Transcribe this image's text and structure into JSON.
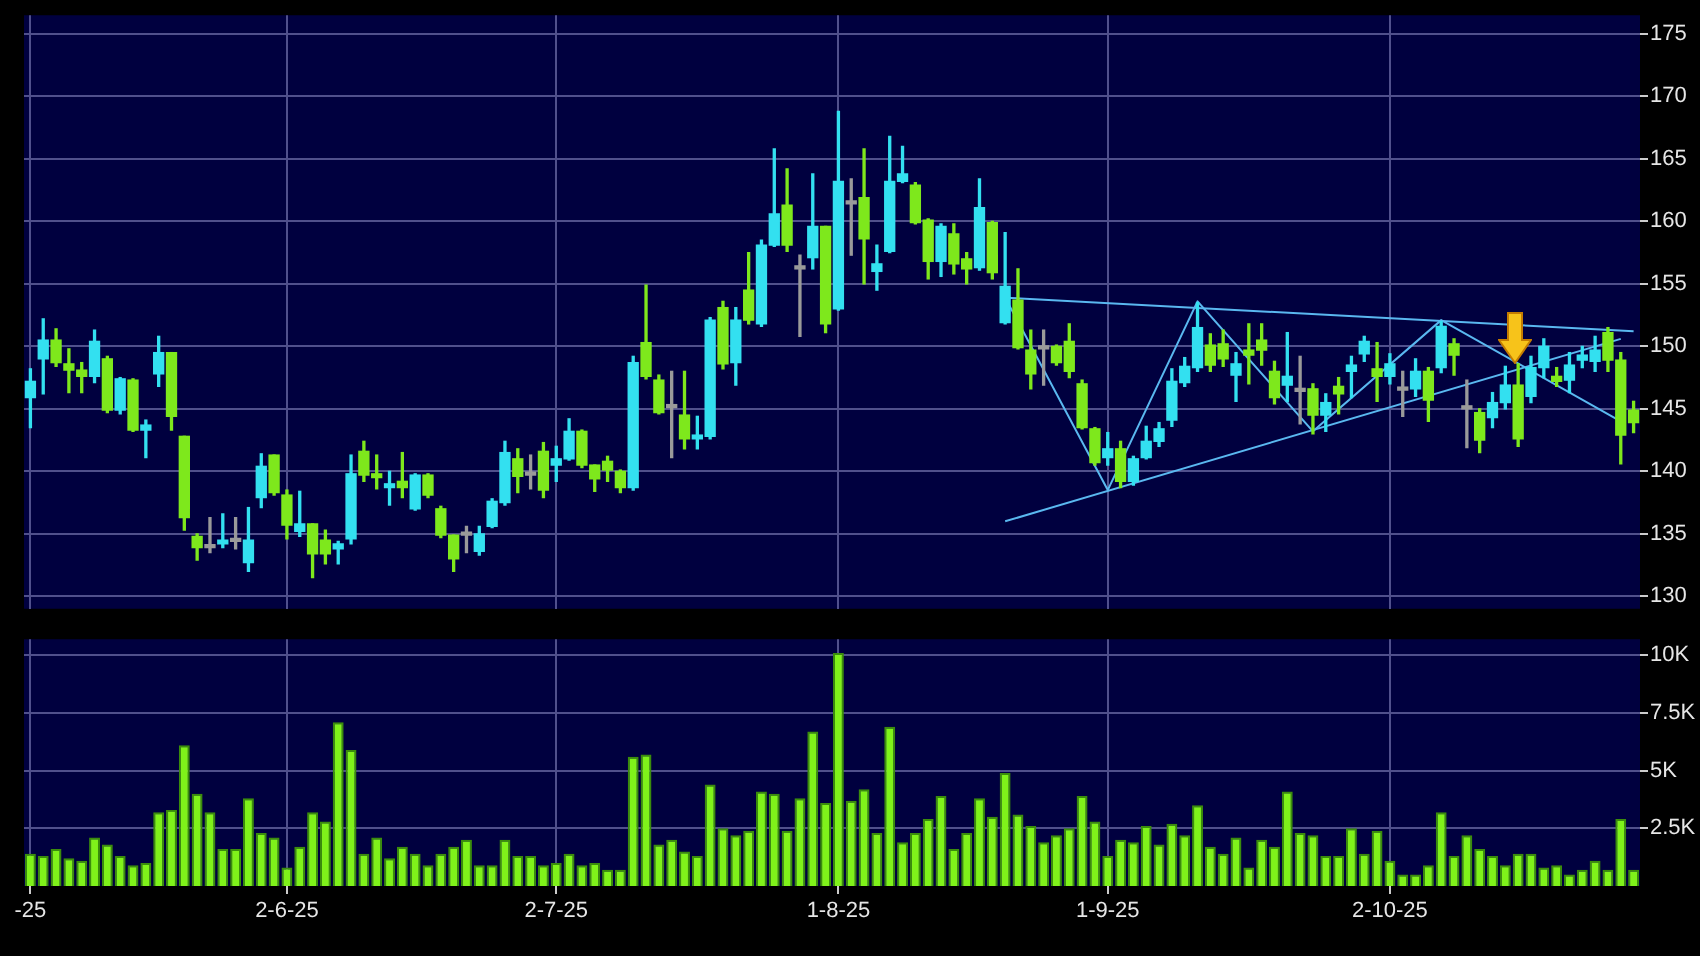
{
  "chart_data": [
    {
      "type": "candlestick",
      "tick_labels": "y",
      "grid": true,
      "legend": false,
      "categories": [
        null,
        null,
        null,
        null,
        null,
        null,
        null,
        null,
        null,
        null,
        null,
        null,
        null,
        null,
        null,
        null,
        null,
        null,
        null,
        null,
        null,
        null,
        null,
        null,
        null,
        null,
        null,
        null,
        null,
        null,
        null,
        null,
        null,
        null,
        null,
        null,
        null,
        null,
        null,
        null,
        null,
        null,
        null,
        null,
        null,
        null,
        null,
        null,
        null,
        null,
        null,
        null,
        null,
        null,
        null,
        null,
        null,
        null,
        null,
        null,
        null,
        null,
        null,
        null,
        null,
        null,
        null,
        null,
        null,
        null,
        null,
        null,
        null,
        null,
        null,
        null,
        null,
        null,
        null,
        null,
        null,
        null,
        null,
        null,
        null,
        null,
        null,
        null,
        null,
        null,
        null,
        null,
        null,
        null,
        null,
        null,
        null,
        null,
        null,
        null,
        null,
        null,
        null,
        null,
        null,
        null,
        null,
        null,
        null,
        null,
        null,
        null,
        null,
        null,
        null,
        null,
        null,
        null,
        null,
        null,
        null,
        null,
        null,
        null,
        null,
        null
      ],
      "ohlc": [
        [
          145.9,
          148.2,
          143.5,
          147.2
        ],
        [
          149.0,
          152.2,
          146.2,
          150.5
        ],
        [
          150.5,
          151.4,
          148.4,
          148.7
        ],
        [
          148.6,
          149.8,
          146.3,
          148.1
        ],
        [
          148.1,
          148.7,
          146.3,
          147.6
        ],
        [
          147.6,
          151.3,
          147.1,
          150.4
        ],
        [
          149.0,
          149.2,
          144.7,
          144.9
        ],
        [
          144.9,
          147.5,
          144.6,
          147.4
        ],
        [
          147.3,
          147.4,
          143.2,
          143.3
        ],
        [
          143.3,
          144.1,
          141.1,
          143.7
        ],
        [
          147.8,
          150.8,
          146.8,
          149.5
        ],
        [
          149.5,
          149.5,
          143.3,
          144.4
        ],
        [
          142.8,
          142.8,
          135.3,
          136.3
        ],
        [
          134.8,
          135.0,
          132.9,
          133.9
        ],
        [
          134.1,
          136.3,
          133.5,
          133.9
        ],
        [
          134.2,
          136.6,
          133.9,
          134.5
        ],
        [
          134.5,
          136.3,
          133.8,
          134.4
        ],
        [
          132.7,
          137.1,
          132.0,
          134.5
        ],
        [
          137.9,
          141.4,
          137.1,
          140.4
        ],
        [
          141.3,
          141.3,
          138.1,
          138.3
        ],
        [
          138.1,
          138.5,
          134.6,
          135.7
        ],
        [
          135.2,
          138.4,
          134.8,
          135.8
        ],
        [
          135.8,
          135.8,
          131.5,
          133.4
        ],
        [
          134.5,
          135.3,
          132.6,
          133.4
        ],
        [
          133.8,
          134.4,
          132.6,
          134.2
        ],
        [
          134.6,
          141.3,
          134.2,
          139.8
        ],
        [
          141.6,
          142.4,
          139.2,
          139.7
        ],
        [
          139.8,
          141.3,
          138.6,
          139.5
        ],
        [
          138.7,
          140.0,
          137.3,
          139.0
        ],
        [
          139.2,
          141.5,
          137.9,
          138.7
        ],
        [
          137.0,
          139.8,
          136.9,
          139.7
        ],
        [
          139.7,
          139.8,
          137.9,
          138.1
        ],
        [
          137.0,
          137.2,
          134.7,
          134.9
        ],
        [
          134.9,
          134.9,
          132.0,
          133.0
        ],
        [
          134.9,
          135.6,
          133.5,
          135.0
        ],
        [
          133.6,
          135.6,
          133.3,
          135.0
        ],
        [
          135.6,
          137.8,
          135.5,
          137.6
        ],
        [
          137.5,
          142.4,
          137.3,
          141.5
        ],
        [
          141.0,
          141.8,
          138.3,
          139.6
        ],
        [
          139.7,
          141.3,
          138.6,
          139.8
        ],
        [
          141.6,
          142.3,
          137.9,
          138.5
        ],
        [
          140.5,
          142.0,
          139.2,
          141.0
        ],
        [
          141.0,
          144.2,
          140.9,
          143.2
        ],
        [
          143.2,
          143.3,
          140.3,
          140.5
        ],
        [
          140.5,
          140.5,
          138.4,
          139.4
        ],
        [
          140.8,
          141.2,
          139.2,
          140.1
        ],
        [
          140.0,
          140.1,
          138.3,
          138.7
        ],
        [
          138.7,
          149.2,
          138.5,
          148.7
        ],
        [
          150.3,
          154.9,
          147.4,
          147.6
        ],
        [
          147.3,
          147.7,
          144.6,
          144.7
        ],
        [
          145.1,
          148.0,
          141.1,
          145.2
        ],
        [
          144.5,
          148.0,
          141.8,
          142.6
        ],
        [
          142.6,
          144.4,
          141.8,
          142.9
        ],
        [
          142.8,
          152.3,
          142.6,
          152.1
        ],
        [
          153.1,
          153.6,
          148.2,
          148.6
        ],
        [
          148.7,
          153.1,
          146.9,
          152.1
        ],
        [
          154.5,
          157.5,
          151.8,
          152.1
        ],
        [
          151.8,
          158.5,
          151.6,
          158.1
        ],
        [
          158.1,
          165.8,
          158.0,
          160.6
        ],
        [
          161.3,
          164.2,
          157.6,
          158.1
        ],
        [
          156.2,
          157.3,
          150.8,
          156.3
        ],
        [
          157.1,
          163.8,
          156.2,
          159.6
        ],
        [
          159.6,
          159.6,
          151.1,
          151.8
        ],
        [
          153.0,
          168.8,
          152.9,
          163.2
        ],
        [
          161.4,
          163.4,
          157.3,
          161.5
        ],
        [
          161.9,
          165.8,
          155.0,
          158.6
        ],
        [
          156.0,
          158.1,
          154.5,
          156.6
        ],
        [
          157.6,
          166.8,
          157.5,
          163.2
        ],
        [
          163.2,
          166.0,
          163.1,
          163.8
        ],
        [
          162.9,
          163.1,
          159.8,
          159.9
        ],
        [
          160.1,
          160.2,
          155.4,
          156.8
        ],
        [
          156.8,
          159.8,
          155.6,
          159.6
        ],
        [
          159.0,
          159.8,
          155.8,
          156.6
        ],
        [
          157.0,
          157.5,
          155.0,
          156.2
        ],
        [
          156.3,
          163.4,
          156.1,
          161.1
        ],
        [
          159.9,
          160.0,
          155.4,
          155.9
        ],
        [
          151.9,
          159.1,
          151.8,
          154.8
        ],
        [
          153.7,
          156.2,
          149.8,
          149.9
        ],
        [
          149.7,
          151.3,
          146.6,
          147.8
        ],
        [
          149.9,
          151.3,
          146.9,
          149.8
        ],
        [
          150.0,
          150.1,
          148.5,
          148.7
        ],
        [
          150.4,
          151.8,
          147.5,
          148.0
        ],
        [
          147.0,
          147.3,
          143.4,
          143.5
        ],
        [
          143.4,
          143.5,
          140.5,
          140.7
        ],
        [
          141.1,
          143.1,
          140.5,
          141.8
        ],
        [
          141.8,
          142.4,
          138.7,
          139.2
        ],
        [
          139.2,
          141.2,
          138.9,
          141.0
        ],
        [
          141.1,
          143.6,
          141.0,
          142.4
        ],
        [
          142.4,
          143.9,
          142.0,
          143.4
        ],
        [
          144.1,
          148.2,
          143.6,
          147.2
        ],
        [
          147.1,
          149.1,
          146.8,
          148.4
        ],
        [
          148.3,
          153.5,
          148.0,
          151.5
        ],
        [
          150.1,
          151.0,
          148.0,
          148.5
        ],
        [
          150.2,
          151.3,
          148.4,
          149.0
        ],
        [
          147.7,
          149.5,
          145.6,
          148.6
        ],
        [
          149.7,
          151.8,
          147.0,
          149.3
        ],
        [
          150.5,
          151.8,
          148.5,
          149.7
        ],
        [
          148.0,
          148.8,
          145.4,
          145.9
        ],
        [
          146.9,
          151.1,
          145.6,
          147.6
        ],
        [
          146.5,
          149.2,
          143.8,
          146.4
        ],
        [
          146.6,
          147.0,
          143.0,
          144.5
        ],
        [
          144.5,
          146.2,
          143.2,
          145.5
        ],
        [
          146.8,
          147.5,
          144.6,
          146.2
        ],
        [
          148.0,
          149.2,
          145.9,
          148.5
        ],
        [
          149.4,
          150.8,
          148.8,
          150.4
        ],
        [
          148.2,
          150.3,
          145.6,
          147.6
        ],
        [
          147.6,
          149.4,
          147.0,
          148.6
        ],
        [
          146.7,
          148.0,
          144.4,
          146.5
        ],
        [
          146.6,
          149.0,
          146.0,
          148.0
        ],
        [
          148.0,
          148.3,
          144.0,
          145.7
        ],
        [
          148.3,
          152.0,
          147.9,
          151.6
        ],
        [
          150.2,
          150.6,
          147.7,
          149.3
        ],
        [
          145.1,
          147.3,
          141.9,
          145.0
        ],
        [
          144.7,
          145.0,
          141.5,
          142.5
        ],
        [
          144.3,
          146.3,
          143.5,
          145.5
        ],
        [
          145.5,
          148.4,
          145.0,
          146.9
        ],
        [
          146.9,
          148.6,
          142.0,
          142.6
        ],
        [
          146.0,
          149.2,
          145.5,
          148.3
        ],
        [
          148.3,
          150.6,
          147.5,
          150.0
        ],
        [
          147.6,
          148.3,
          146.8,
          147.2
        ],
        [
          147.3,
          149.5,
          146.3,
          148.5
        ],
        [
          148.9,
          150.0,
          148.3,
          149.3
        ],
        [
          148.8,
          150.8,
          148.0,
          149.7
        ],
        [
          151.1,
          151.5,
          148.0,
          148.9
        ],
        [
          148.9,
          149.5,
          140.6,
          142.9
        ],
        [
          144.9,
          145.6,
          143.1,
          143.9
        ]
      ],
      "colors": [
        "#33e0f0",
        "#33e0f0",
        "#7ee81c",
        "#7ee81c",
        "#7ee81c",
        "#33e0f0",
        "#7ee81c",
        "#33e0f0",
        "#7ee81c",
        "#33e0f0",
        "#33e0f0",
        "#7ee81c",
        "#7ee81c",
        "#7ee81c",
        "#9a9a9a",
        "#33e0f0",
        "#9a9a9a",
        "#33e0f0",
        "#33e0f0",
        "#7ee81c",
        "#7ee81c",
        "#33e0f0",
        "#7ee81c",
        "#7ee81c",
        "#33e0f0",
        "#33e0f0",
        "#7ee81c",
        "#7ee81c",
        "#33e0f0",
        "#7ee81c",
        "#33e0f0",
        "#7ee81c",
        "#7ee81c",
        "#7ee81c",
        "#9a9a9a",
        "#33e0f0",
        "#33e0f0",
        "#33e0f0",
        "#7ee81c",
        "#9a9a9a",
        "#7ee81c",
        "#33e0f0",
        "#33e0f0",
        "#7ee81c",
        "#7ee81c",
        "#7ee81c",
        "#7ee81c",
        "#33e0f0",
        "#7ee81c",
        "#7ee81c",
        "#9a9a9a",
        "#7ee81c",
        "#33e0f0",
        "#33e0f0",
        "#7ee81c",
        "#33e0f0",
        "#7ee81c",
        "#33e0f0",
        "#33e0f0",
        "#7ee81c",
        "#9a9a9a",
        "#33e0f0",
        "#7ee81c",
        "#33e0f0",
        "#9a9a9a",
        "#7ee81c",
        "#33e0f0",
        "#33e0f0",
        "#33e0f0",
        "#7ee81c",
        "#7ee81c",
        "#33e0f0",
        "#7ee81c",
        "#7ee81c",
        "#33e0f0",
        "#7ee81c",
        "#33e0f0",
        "#7ee81c",
        "#7ee81c",
        "#9a9a9a",
        "#7ee81c",
        "#7ee81c",
        "#7ee81c",
        "#7ee81c",
        "#33e0f0",
        "#7ee81c",
        "#33e0f0",
        "#33e0f0",
        "#33e0f0",
        "#33e0f0",
        "#33e0f0",
        "#33e0f0",
        "#7ee81c",
        "#7ee81c",
        "#33e0f0",
        "#7ee81c",
        "#7ee81c",
        "#7ee81c",
        "#33e0f0",
        "#9a9a9a",
        "#7ee81c",
        "#33e0f0",
        "#7ee81c",
        "#33e0f0",
        "#33e0f0",
        "#7ee81c",
        "#33e0f0",
        "#9a9a9a",
        "#33e0f0",
        "#7ee81c",
        "#33e0f0",
        "#7ee81c",
        "#9a9a9a",
        "#7ee81c",
        "#33e0f0",
        "#33e0f0",
        "#7ee81c",
        "#33e0f0",
        "#33e0f0",
        "#7ee81c",
        "#33e0f0",
        "#33e0f0",
        "#33e0f0",
        "#7ee81c",
        "#7ee81c",
        "#7ee81c"
      ],
      "series": [
        {
          "type": "line",
          "color": "#5ab8f0",
          "values": [
            null,
            null,
            null,
            null,
            null,
            null,
            null,
            null,
            null,
            null,
            null,
            null,
            null,
            null,
            null,
            null,
            null,
            null,
            null,
            null,
            null,
            null,
            null,
            null,
            null,
            null,
            null,
            null,
            null,
            null,
            null,
            null,
            null,
            null,
            null,
            null,
            null,
            null,
            null,
            null,
            null,
            null,
            null,
            null,
            null,
            null,
            null,
            null,
            null,
            null,
            null,
            null,
            null,
            null,
            null,
            null,
            null,
            null,
            null,
            null,
            null,
            null,
            null,
            null,
            null,
            null,
            null,
            null,
            null,
            null,
            null,
            null,
            null,
            null,
            null,
            null,
            153.9,
            null,
            null,
            null,
            null,
            null,
            null,
            null,
            null,
            null,
            null,
            null,
            null,
            null,
            null,
            null,
            null,
            null,
            null,
            null,
            null,
            null,
            null,
            null,
            null,
            null,
            null,
            null,
            null,
            null,
            null,
            null,
            null,
            null,
            null,
            null,
            null,
            null,
            null,
            null,
            null,
            null,
            null,
            null,
            null,
            null,
            null,
            null,
            null,
            151.2
          ]
        },
        {
          "type": "line",
          "color": "#5ab8f0",
          "values": [
            null,
            null,
            null,
            null,
            null,
            null,
            null,
            null,
            null,
            null,
            null,
            null,
            null,
            null,
            null,
            null,
            null,
            null,
            null,
            null,
            null,
            null,
            null,
            null,
            null,
            null,
            null,
            null,
            null,
            null,
            null,
            null,
            null,
            null,
            null,
            null,
            null,
            null,
            null,
            null,
            null,
            null,
            null,
            null,
            null,
            null,
            null,
            null,
            null,
            null,
            null,
            null,
            null,
            null,
            null,
            null,
            null,
            null,
            null,
            null,
            null,
            null,
            null,
            null,
            null,
            null,
            null,
            null,
            null,
            null,
            null,
            null,
            null,
            null,
            null,
            null,
            136.0,
            null,
            null,
            null,
            null,
            null,
            null,
            null,
            null,
            null,
            null,
            null,
            null,
            null,
            null,
            null,
            null,
            null,
            null,
            null,
            null,
            null,
            null,
            null,
            null,
            null,
            null,
            null,
            null,
            null,
            null,
            null,
            null,
            null,
            null,
            null,
            null,
            null,
            null,
            null,
            null,
            null,
            null,
            null,
            null,
            null,
            null,
            null,
            150.6,
            null
          ]
        },
        {
          "type": "line",
          "color": "#5ab8f0",
          "values": [
            null,
            null,
            null,
            null,
            null,
            null,
            null,
            null,
            null,
            null,
            null,
            null,
            null,
            null,
            null,
            null,
            null,
            null,
            null,
            null,
            null,
            null,
            null,
            null,
            null,
            null,
            null,
            null,
            null,
            null,
            null,
            null,
            null,
            null,
            null,
            null,
            null,
            null,
            null,
            null,
            null,
            null,
            null,
            null,
            null,
            null,
            null,
            null,
            null,
            null,
            null,
            null,
            null,
            null,
            null,
            null,
            null,
            null,
            null,
            null,
            null,
            null,
            null,
            null,
            null,
            null,
            null,
            null,
            null,
            null,
            null,
            null,
            null,
            null,
            null,
            null,
            153.9,
            null,
            null,
            null,
            null,
            null,
            null,
            null,
            138.5,
            null,
            null,
            null,
            null,
            null,
            null,
            153.6,
            null,
            null,
            null,
            null,
            null,
            null,
            null,
            null,
            143.2,
            null,
            null,
            null,
            null,
            null,
            null,
            null,
            null,
            null,
            152.1,
            null,
            null,
            null,
            null,
            null,
            null,
            null,
            null,
            null,
            null,
            null,
            null,
            null,
            144.0,
            null
          ]
        }
      ],
      "ylim": [
        129,
        176.5
      ],
      "yticks": [
        130,
        135,
        140,
        145,
        150,
        155,
        160,
        165,
        170,
        175
      ]
    },
    {
      "type": "bar",
      "grid": true,
      "legend": false,
      "color": "#7ff21a",
      "categories": [
        "-25",
        null,
        null,
        null,
        null,
        null,
        null,
        null,
        null,
        null,
        null,
        null,
        null,
        null,
        null,
        null,
        null,
        null,
        null,
        null,
        "2-6-25",
        null,
        null,
        null,
        null,
        null,
        null,
        null,
        null,
        null,
        null,
        null,
        null,
        null,
        null,
        null,
        null,
        null,
        null,
        null,
        null,
        "2-7-25",
        null,
        null,
        null,
        null,
        null,
        null,
        null,
        null,
        null,
        null,
        null,
        null,
        null,
        null,
        null,
        null,
        null,
        null,
        null,
        null,
        null,
        "1-8-25",
        null,
        null,
        null,
        null,
        null,
        null,
        null,
        null,
        null,
        null,
        null,
        null,
        null,
        null,
        null,
        null,
        null,
        null,
        null,
        null,
        "1-9-25",
        null,
        null,
        null,
        null,
        null,
        null,
        null,
        null,
        null,
        null,
        null,
        null,
        null,
        null,
        null,
        null,
        null,
        null,
        null,
        null,
        null,
        "2-10-25",
        null,
        null,
        null,
        null,
        null,
        null,
        null,
        null,
        null,
        null,
        null,
        null,
        null,
        null,
        null,
        null,
        null,
        null,
        null
      ],
      "values": [
        1.4,
        1.3,
        1.6,
        1.2,
        1.1,
        2.1,
        1.8,
        1.3,
        0.9,
        1.0,
        3.2,
        3.3,
        6.1,
        4.0,
        3.2,
        1.6,
        1.6,
        3.8,
        2.3,
        2.1,
        0.8,
        1.7,
        3.2,
        2.8,
        7.1,
        5.9,
        1.4,
        2.1,
        1.2,
        1.7,
        1.4,
        0.9,
        1.4,
        1.7,
        2.0,
        0.9,
        0.9,
        2.0,
        1.3,
        1.3,
        0.9,
        1.0,
        1.4,
        0.9,
        1.0,
        0.7,
        0.7,
        5.6,
        5.7,
        1.8,
        2.0,
        1.5,
        1.3,
        4.4,
        2.5,
        2.2,
        2.4,
        4.1,
        4.0,
        2.4,
        3.8,
        6.7,
        3.6,
        10.1,
        3.7,
        4.2,
        2.3,
        6.9,
        1.9,
        2.3,
        2.9,
        3.9,
        1.6,
        2.3,
        3.8,
        3.0,
        4.9,
        3.1,
        2.6,
        1.9,
        2.2,
        2.5,
        3.9,
        2.8,
        1.3,
        2.0,
        1.9,
        2.6,
        1.8,
        2.7,
        2.2,
        3.5,
        1.7,
        1.4,
        2.1,
        0.8,
        2.0,
        1.7,
        4.1,
        2.3,
        2.2,
        1.3,
        1.3,
        2.5,
        1.4,
        2.4,
        1.1,
        0.5,
        0.5,
        0.9,
        3.2,
        1.3,
        2.2,
        1.6,
        1.3,
        0.9,
        1.4,
        1.4,
        0.8,
        0.9,
        0.5,
        0.7,
        1.1,
        0.7,
        2.9,
        0.7
      ],
      "ylim": [
        0,
        10.7
      ],
      "yticks": [
        {
          "value": 2.5,
          "label": "2.5K"
        },
        {
          "value": 5,
          "label": "5K"
        },
        {
          "value": 7.5,
          "label": "7.5K"
        },
        {
          "value": 10,
          "label": "10K"
        }
      ]
    }
  ]
}
